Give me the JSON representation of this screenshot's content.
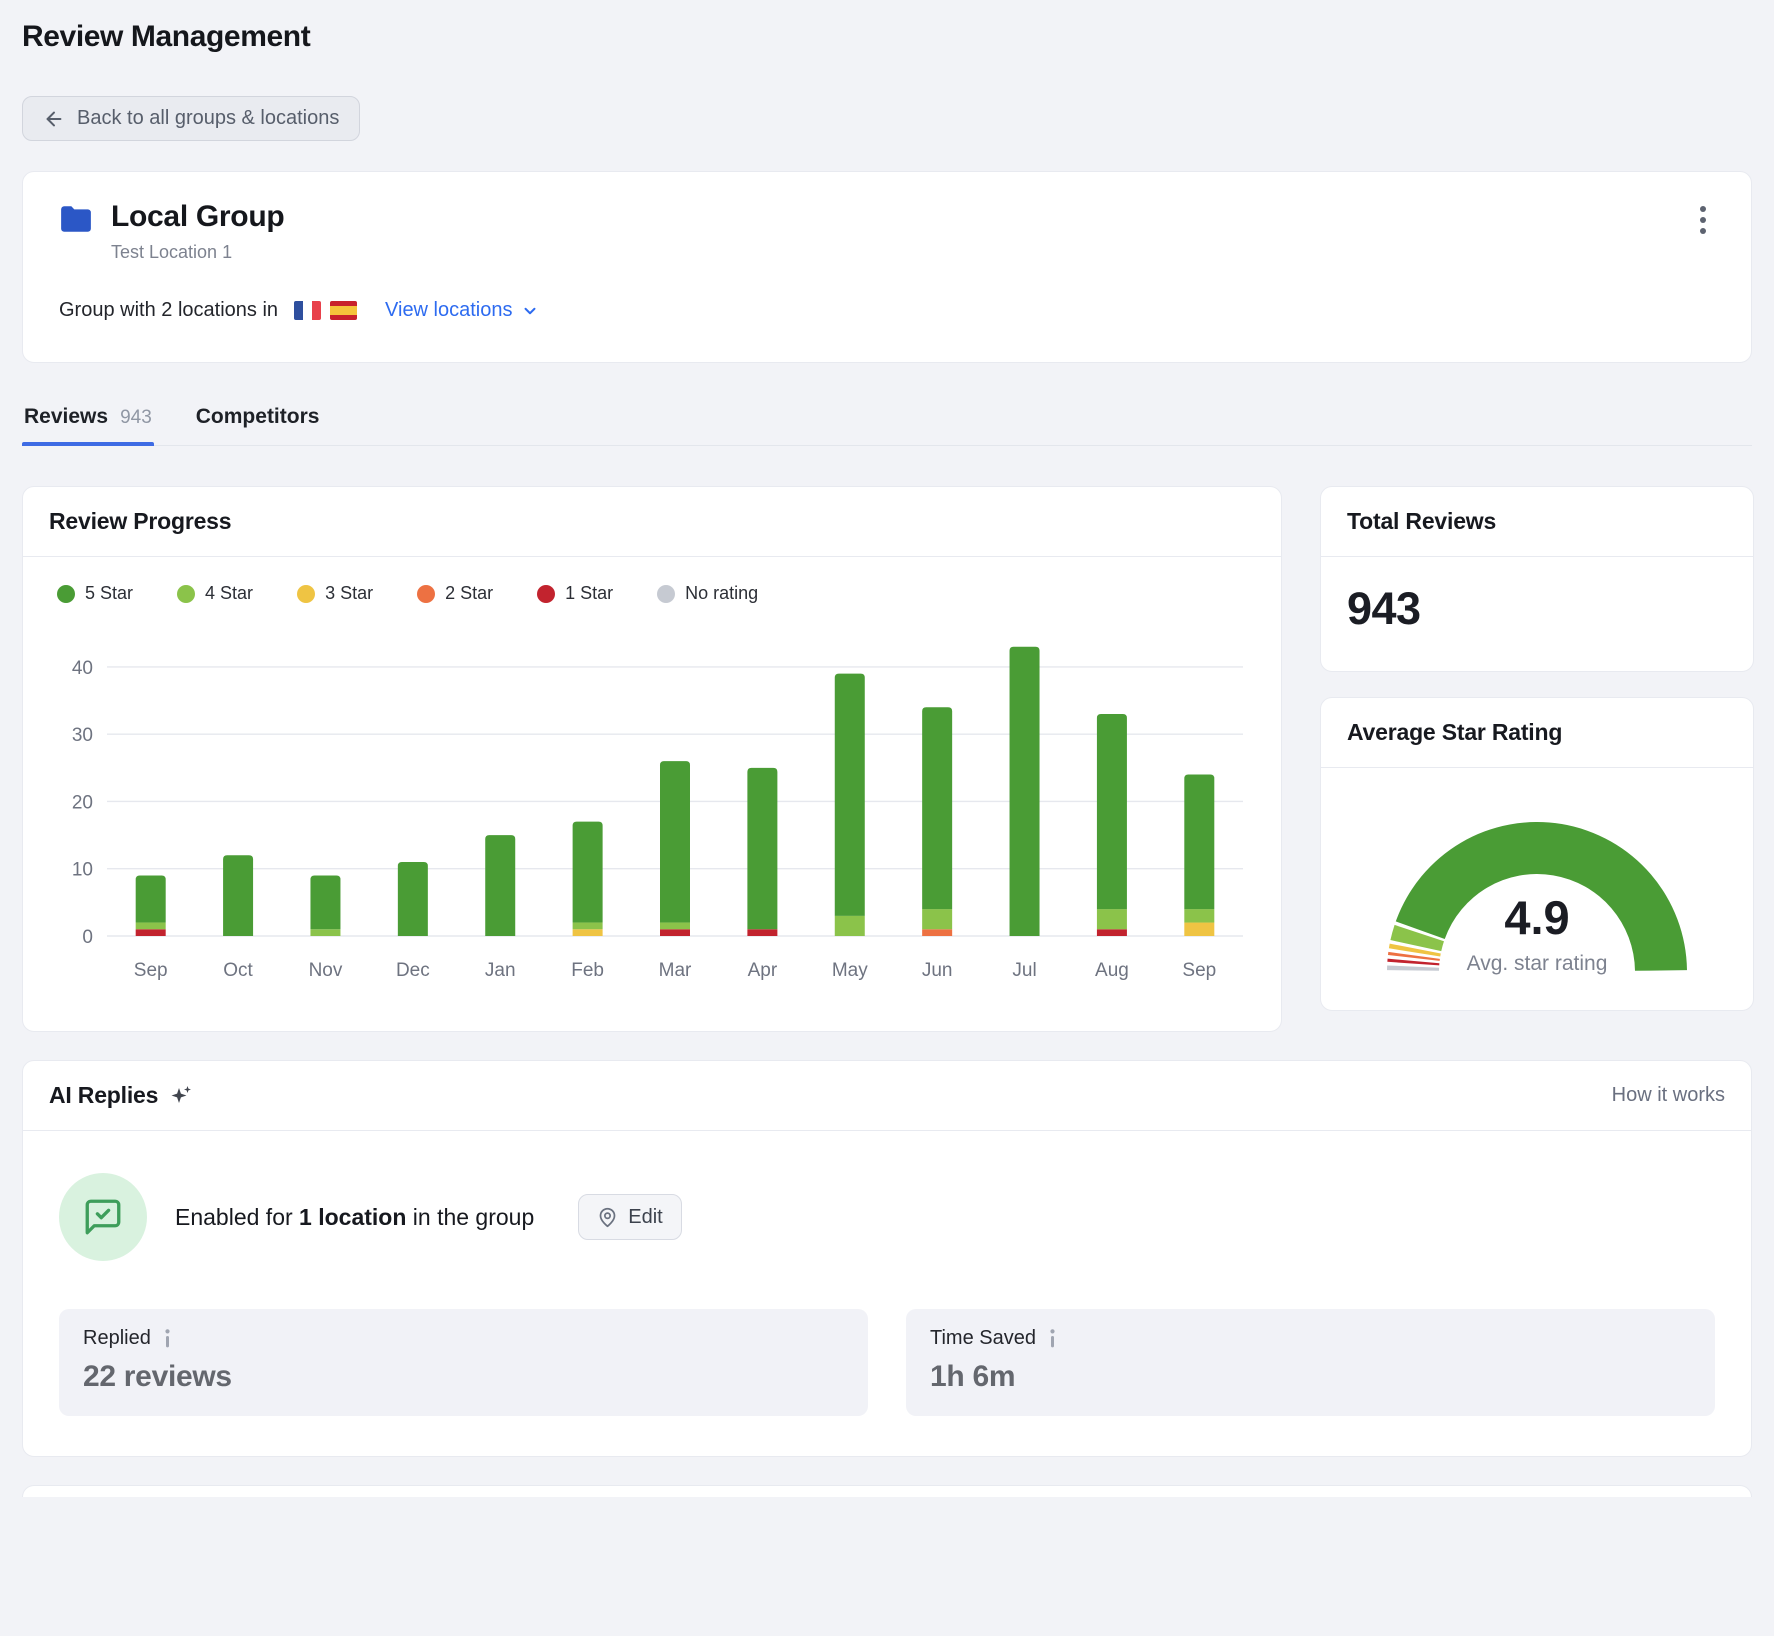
{
  "page": {
    "title": "Review Management"
  },
  "toolbar": {
    "back_label": "Back to all groups & locations"
  },
  "group_card": {
    "title": "Local Group",
    "subtitle": "Test Location 1",
    "locations_prefix": "Group with 2 locations in",
    "view_locations_label": "View locations",
    "flags": [
      "france",
      "spain"
    ]
  },
  "tabs": {
    "reviews_label": "Reviews",
    "reviews_count": "943",
    "competitors_label": "Competitors"
  },
  "review_progress": {
    "title": "Review Progress"
  },
  "total_reviews": {
    "title": "Total Reviews",
    "value": "943"
  },
  "average_star_rating": {
    "title": "Average Star Rating"
  },
  "ai_replies": {
    "title": "AI Replies",
    "how_it_works_label": "How it works",
    "enabled_prefix": "Enabled for",
    "enabled_bold": "1 location",
    "enabled_suffix": "in the group",
    "edit_label": "Edit",
    "stats": [
      {
        "label": "Replied",
        "value": "22 reviews"
      },
      {
        "label": "Time Saved",
        "value": "1h 6m"
      }
    ]
  },
  "colors": {
    "star5": "#4A9C35",
    "star4": "#8BC34A",
    "star3": "#EFC443",
    "star2": "#ED7142",
    "star1": "#C2232E",
    "no_rating": "#C6CAD2",
    "accent_blue": "#2D6BF0",
    "tab_underline": "#3E6BE4",
    "folder_blue": "#2B57C6"
  },
  "chart_data": [
    {
      "id": "review_progress",
      "type": "bar",
      "stacked": true,
      "title": "Review Progress",
      "categories": [
        "Sep",
        "Oct",
        "Nov",
        "Dec",
        "Jan",
        "Feb",
        "Mar",
        "Apr",
        "May",
        "Jun",
        "Jul",
        "Aug",
        "Sep"
      ],
      "series": [
        {
          "name": "No rating",
          "color": "#C6CAD2",
          "values": [
            0,
            0,
            0,
            0,
            0,
            0,
            0,
            0,
            0,
            0,
            0,
            0,
            0
          ]
        },
        {
          "name": "1 Star",
          "color": "#C2232E",
          "values": [
            1,
            0,
            0,
            0,
            0,
            0,
            1,
            1,
            0,
            0,
            0,
            1,
            0
          ]
        },
        {
          "name": "2 Star",
          "color": "#ED7142",
          "values": [
            0,
            0,
            0,
            0,
            0,
            0,
            0,
            0,
            0,
            1,
            0,
            0,
            0
          ]
        },
        {
          "name": "3 Star",
          "color": "#EFC443",
          "values": [
            0,
            0,
            0,
            0,
            0,
            1,
            0,
            0,
            0,
            0,
            0,
            0,
            2
          ]
        },
        {
          "name": "4 Star",
          "color": "#8BC34A",
          "values": [
            1,
            0,
            1,
            0,
            0,
            1,
            1,
            0,
            3,
            3,
            0,
            3,
            2
          ]
        },
        {
          "name": "5 Star",
          "color": "#4A9C35",
          "values": [
            7,
            12,
            8,
            11,
            15,
            15,
            24,
            24,
            36,
            30,
            43,
            29,
            20
          ]
        }
      ],
      "legend_order": [
        "5 Star",
        "4 Star",
        "3 Star",
        "2 Star",
        "1 Star",
        "No rating"
      ],
      "legend_position": "top",
      "xlabel": "",
      "ylabel": "",
      "ylim": [
        0,
        44
      ],
      "yticks": [
        0,
        10,
        20,
        30,
        40
      ],
      "grid": true
    },
    {
      "id": "average_star_rating",
      "type": "gauge",
      "title": "Average Star Rating",
      "value": 4.9,
      "value_label": "4.9",
      "caption": "Avg. star rating",
      "segments": [
        {
          "name": "No rating",
          "color": "#C6CAD2",
          "sweep_deg": 3.2
        },
        {
          "name": "1 Star",
          "color": "#C2232E",
          "sweep_deg": 2.6
        },
        {
          "name": "2 Star",
          "color": "#ED7142",
          "sweep_deg": 2.6
        },
        {
          "name": "3 Star",
          "color": "#EFC443",
          "sweep_deg": 3.2
        },
        {
          "name": "4 Star",
          "color": "#8BC34A",
          "sweep_deg": 7.4
        },
        {
          "name": "5 Star",
          "color": "#4A9C35",
          "sweep_deg": 161
        }
      ]
    }
  ]
}
